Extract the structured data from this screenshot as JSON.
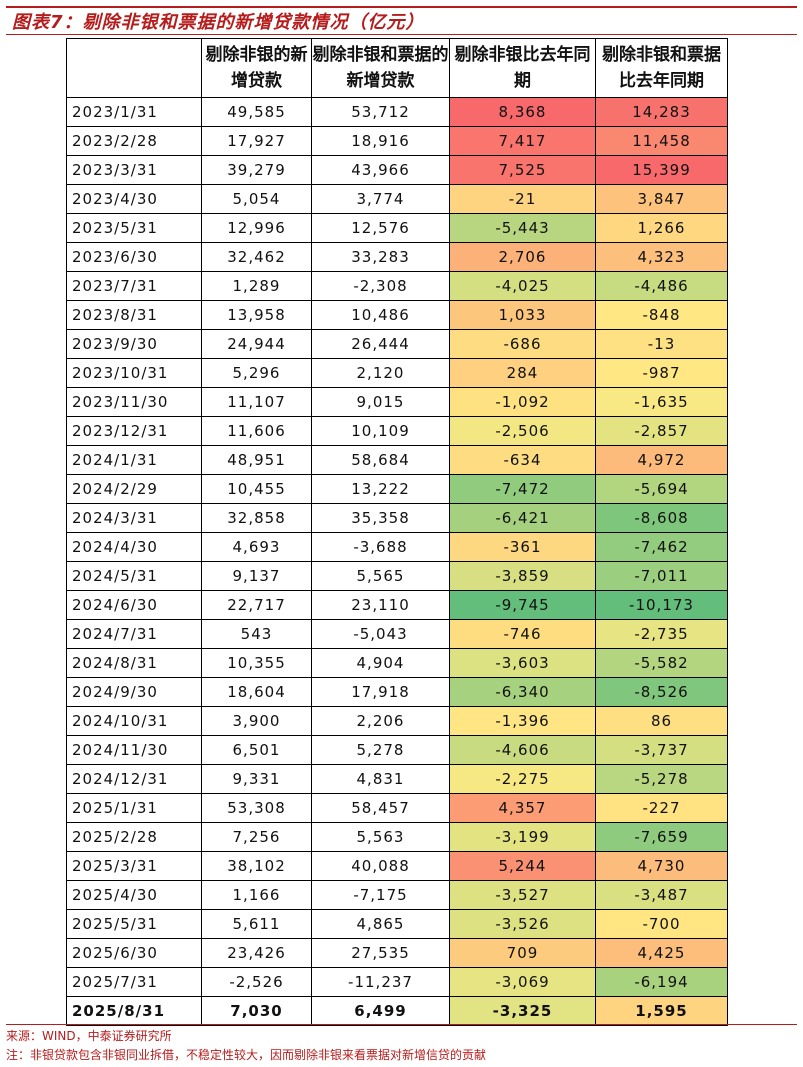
{
  "title": "图表7：剔除非银和票据的新增贷款情况（亿元）",
  "headers": [
    "",
    "剔除非银的新增贷款",
    "剔除非银和票据的新增贷款",
    "剔除非银比去年同期",
    "剔除非银和票据比去年同期"
  ],
  "rows": [
    {
      "date": "2023/1/31",
      "a": "49,585",
      "b": "53,712",
      "c": "8,368",
      "d": "14,283"
    },
    {
      "date": "2023/2/28",
      "a": "17,927",
      "b": "18,916",
      "c": "7,417",
      "d": "11,458"
    },
    {
      "date": "2023/3/31",
      "a": "39,279",
      "b": "43,966",
      "c": "7,525",
      "d": "15,399"
    },
    {
      "date": "2023/4/30",
      "a": "5,054",
      "b": "3,774",
      "c": "-21",
      "d": "3,847"
    },
    {
      "date": "2023/5/31",
      "a": "12,996",
      "b": "12,576",
      "c": "-5,443",
      "d": "1,266"
    },
    {
      "date": "2023/6/30",
      "a": "32,462",
      "b": "33,283",
      "c": "2,706",
      "d": "4,323"
    },
    {
      "date": "2023/7/31",
      "a": "1,289",
      "b": "-2,308",
      "c": "-4,025",
      "d": "-4,486"
    },
    {
      "date": "2023/8/31",
      "a": "13,958",
      "b": "10,486",
      "c": "1,033",
      "d": "-848"
    },
    {
      "date": "2023/9/30",
      "a": "24,944",
      "b": "26,444",
      "c": "-686",
      "d": "-13"
    },
    {
      "date": "2023/10/31",
      "a": "5,296",
      "b": "2,120",
      "c": "284",
      "d": "-987"
    },
    {
      "date": "2023/11/30",
      "a": "11,107",
      "b": "9,015",
      "c": "-1,092",
      "d": "-1,635"
    },
    {
      "date": "2023/12/31",
      "a": "11,606",
      "b": "10,109",
      "c": "-2,506",
      "d": "-2,857"
    },
    {
      "date": "2024/1/31",
      "a": "48,951",
      "b": "58,684",
      "c": "-634",
      "d": "4,972"
    },
    {
      "date": "2024/2/29",
      "a": "10,455",
      "b": "13,222",
      "c": "-7,472",
      "d": "-5,694"
    },
    {
      "date": "2024/3/31",
      "a": "32,858",
      "b": "35,358",
      "c": "-6,421",
      "d": "-8,608"
    },
    {
      "date": "2024/4/30",
      "a": "4,693",
      "b": "-3,688",
      "c": "-361",
      "d": "-7,462"
    },
    {
      "date": "2024/5/31",
      "a": "9,137",
      "b": "5,565",
      "c": "-3,859",
      "d": "-7,011"
    },
    {
      "date": "2024/6/30",
      "a": "22,717",
      "b": "23,110",
      "c": "-9,745",
      "d": "-10,173"
    },
    {
      "date": "2024/7/31",
      "a": "543",
      "b": "-5,043",
      "c": "-746",
      "d": "-2,735"
    },
    {
      "date": "2024/8/31",
      "a": "10,355",
      "b": "4,904",
      "c": "-3,603",
      "d": "-5,582"
    },
    {
      "date": "2024/9/30",
      "a": "18,604",
      "b": "17,918",
      "c": "-6,340",
      "d": "-8,526"
    },
    {
      "date": "2024/10/31",
      "a": "3,900",
      "b": "2,206",
      "c": "-1,396",
      "d": "86"
    },
    {
      "date": "2024/11/30",
      "a": "6,501",
      "b": "5,278",
      "c": "-4,606",
      "d": "-3,737"
    },
    {
      "date": "2024/12/31",
      "a": "9,331",
      "b": "4,831",
      "c": "-2,275",
      "d": "-5,278"
    },
    {
      "date": "2025/1/31",
      "a": "53,308",
      "b": "58,457",
      "c": "4,357",
      "d": "-227"
    },
    {
      "date": "2025/2/28",
      "a": "7,256",
      "b": "5,563",
      "c": "-3,199",
      "d": "-7,659"
    },
    {
      "date": "2025/3/31",
      "a": "38,102",
      "b": "40,088",
      "c": "5,244",
      "d": "4,730"
    },
    {
      "date": "2025/4/30",
      "a": "1,166",
      "b": "-7,175",
      "c": "-3,527",
      "d": "-3,487"
    },
    {
      "date": "2025/5/31",
      "a": "5,611",
      "b": "4,865",
      "c": "-3,526",
      "d": "-700"
    },
    {
      "date": "2025/6/30",
      "a": "23,426",
      "b": "27,535",
      "c": "709",
      "d": "4,425"
    },
    {
      "date": "2025/7/31",
      "a": "-2,526",
      "b": "-11,237",
      "c": "-3,069",
      "d": "-6,194"
    },
    {
      "date": "2025/8/31",
      "a": "7,030",
      "b": "6,499",
      "c": "-3,325",
      "d": "1,595",
      "bold": true
    }
  ],
  "heatmap_colors": {
    "low": "#63be7b",
    "mid": "#ffeb84",
    "high": "#f8696b"
  },
  "source": "来源：WIND，中泰证券研究所",
  "note": "注：非银贷款包含非银同业拆借，不稳定性较大，因而剔除非银来看票据对新增信贷的贡献"
}
